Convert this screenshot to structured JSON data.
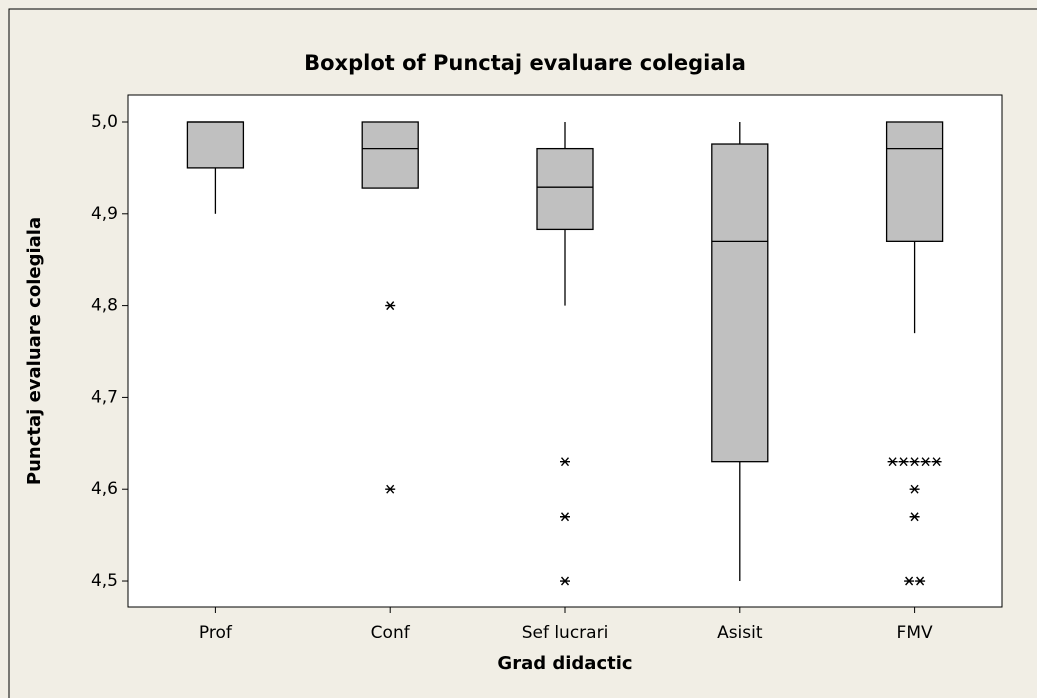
{
  "chart_data": {
    "type": "box",
    "title": "Boxplot of Punctaj evaluare colegiala",
    "xlabel": "Grad didactic",
    "ylabel": "Punctaj evaluare colegiala",
    "categories": [
      "Prof",
      "Conf",
      "Sef lucrari",
      "Asisit",
      "FMV"
    ],
    "boxes": [
      {
        "min": 4.9,
        "q1": 4.95,
        "median": 5.0,
        "q3": 5.0,
        "max": 5.0,
        "outliers": []
      },
      {
        "min": 4.928,
        "q1": 4.928,
        "median": 4.971,
        "q3": 5.0,
        "max": 5.0,
        "outliers": [
          4.8,
          4.6
        ]
      },
      {
        "min": 4.8,
        "q1": 4.883,
        "median": 4.929,
        "q3": 4.971,
        "max": 5.0,
        "outliers": [
          4.63,
          4.57,
          4.5
        ]
      },
      {
        "min": 4.5,
        "q1": 4.63,
        "median": 4.87,
        "q3": 4.976,
        "max": 5.0,
        "outliers": []
      },
      {
        "min": 4.77,
        "q1": 4.87,
        "median": 4.971,
        "q3": 5.0,
        "max": 5.0,
        "outliers": [
          4.63,
          4.63,
          4.63,
          4.63,
          4.63,
          4.6,
          4.57,
          4.5,
          4.5
        ]
      }
    ],
    "color": "#c0c0c0",
    "ylim": [
      4.4717,
      5.0294
    ],
    "yticks": [
      {
        "value": 4.5,
        "label": "4,5"
      },
      {
        "value": 4.6,
        "label": "4,6"
      },
      {
        "value": 4.7,
        "label": "4,7"
      },
      {
        "value": 4.8,
        "label": "4,8"
      },
      {
        "value": 4.9,
        "label": "4,9"
      },
      {
        "value": 5.0,
        "label": "5,0"
      }
    ]
  }
}
